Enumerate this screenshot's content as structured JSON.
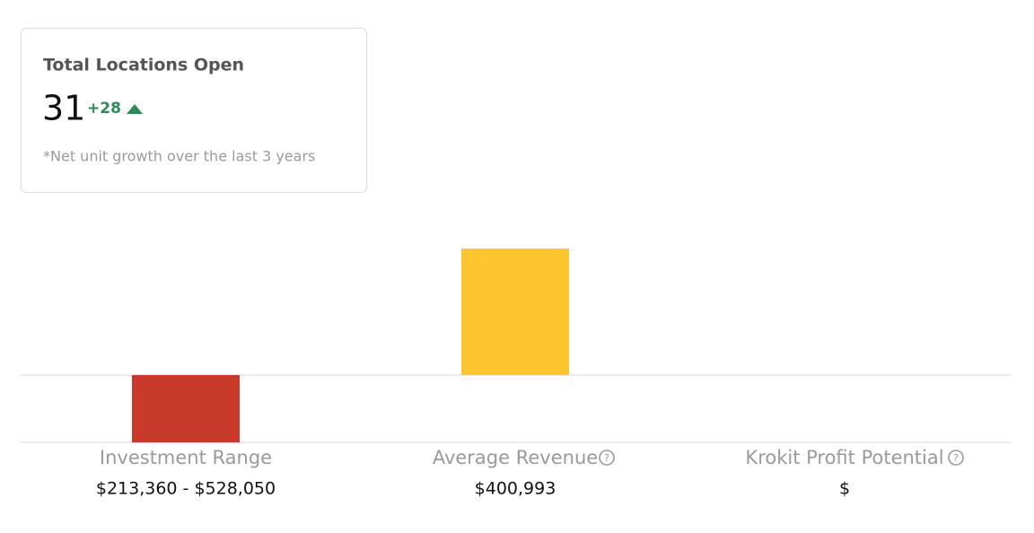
{
  "card": {
    "title": "Total Locations Open",
    "value": 31,
    "change": "+28",
    "note": "*Net unit growth over the last 3 years"
  },
  "chart_data": {
    "type": "bar",
    "categories": [
      "Investment Range",
      "Average Revenue",
      "Krokit Profit Potential"
    ],
    "values": [
      -213360,
      400993,
      null
    ],
    "colors": [
      "#c83b2a",
      "#fdc62e",
      "#cccccc"
    ]
  },
  "value_texts": [
    "$213,360 - $528,050",
    "$400,993",
    "$"
  ]
}
